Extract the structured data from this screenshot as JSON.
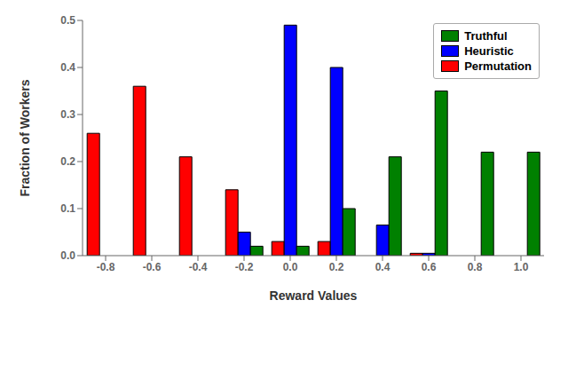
{
  "chart_data": {
    "type": "bar",
    "categories": [
      "-0.8",
      "-0.6",
      "-0.4",
      "-0.2",
      "0.0",
      "0.2",
      "0.4",
      "0.6",
      "0.8",
      "1.0"
    ],
    "series": [
      {
        "name": "Permutation",
        "color": "#FF0000",
        "values": [
          0.26,
          0.36,
          0.21,
          0.14,
          0.03,
          0.03,
          0.0,
          0.005,
          0.0,
          0.0
        ]
      },
      {
        "name": "Heuristic",
        "color": "#0000FF",
        "values": [
          0.0,
          0.0,
          0.0,
          0.05,
          0.49,
          0.4,
          0.065,
          0.005,
          0.0,
          0.0
        ]
      },
      {
        "name": "Truthful",
        "color": "#008000",
        "values": [
          0.0,
          0.0,
          0.0,
          0.02,
          0.02,
          0.1,
          0.21,
          0.35,
          0.22,
          0.22
        ]
      }
    ],
    "xlabel": "Reward Values",
    "ylabel": "Fraction of Workers",
    "ylim": [
      0,
      0.5
    ],
    "yticks": [
      {
        "value": 0,
        "label": "0.0"
      },
      0.1,
      0.2,
      0.3,
      0.4,
      0.5
    ],
    "legend": "upper right",
    "grid": false
  }
}
